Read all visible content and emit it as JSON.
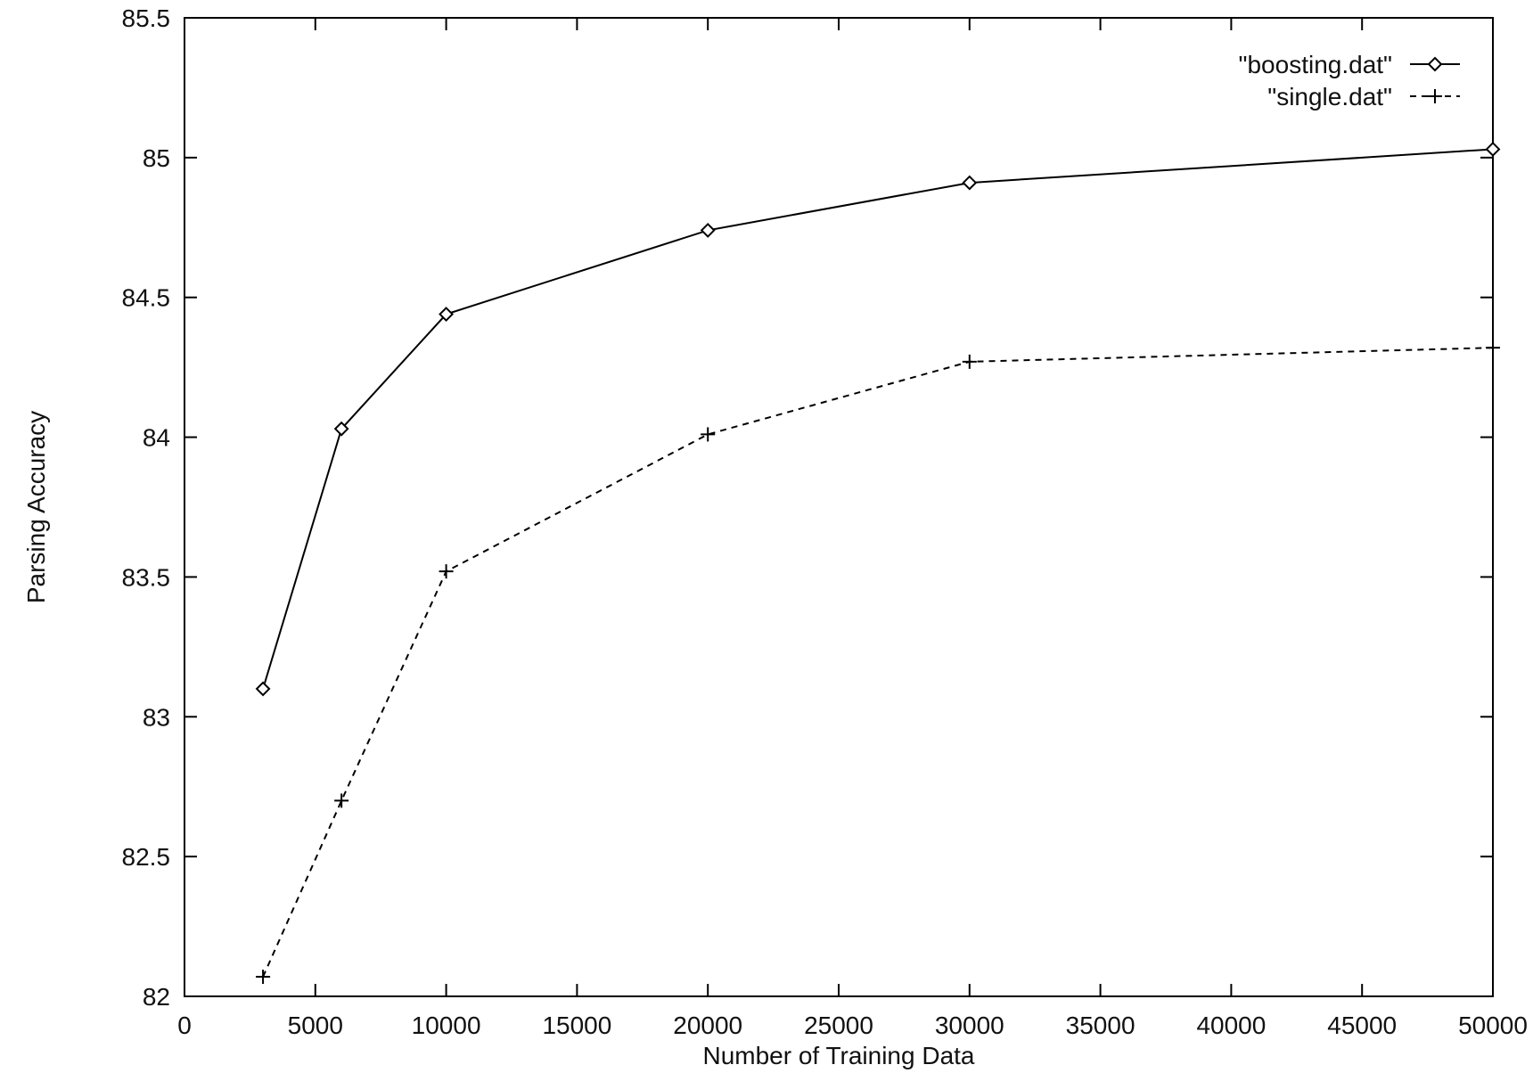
{
  "chart_data": {
    "type": "line",
    "title": "",
    "xlabel": "Number of Training Data",
    "ylabel": "Parsing Accuracy",
    "xlim": [
      0,
      50000
    ],
    "ylim": [
      82,
      85.5
    ],
    "x_ticks": [
      0,
      5000,
      10000,
      15000,
      20000,
      25000,
      30000,
      35000,
      40000,
      45000,
      50000
    ],
    "y_ticks": [
      82,
      82.5,
      83,
      83.5,
      84,
      84.5,
      85,
      85.5
    ],
    "x_tick_labels": [
      "0",
      "5000",
      "10000",
      "15000",
      "20000",
      "25000",
      "30000",
      "35000",
      "40000",
      "45000",
      "50000"
    ],
    "y_tick_labels": [
      "82",
      "82.5",
      "83",
      "83.5",
      "84",
      "84.5",
      "85",
      "85.5"
    ],
    "grid": false,
    "legend_position": "top-right",
    "series": [
      {
        "name": "\"boosting.dat\"",
        "marker": "diamond",
        "line_style": "solid",
        "color": "#000000",
        "x": [
          3000,
          6000,
          10000,
          20000,
          30000,
          50000
        ],
        "y": [
          83.1,
          84.03,
          84.44,
          84.74,
          84.91,
          85.03
        ]
      },
      {
        "name": "\"single.dat\"",
        "marker": "plus",
        "line_style": "dashed",
        "color": "#000000",
        "x": [
          3000,
          6000,
          10000,
          20000,
          30000,
          50000
        ],
        "y": [
          82.07,
          82.7,
          83.52,
          84.01,
          84.27,
          84.32
        ]
      }
    ]
  }
}
